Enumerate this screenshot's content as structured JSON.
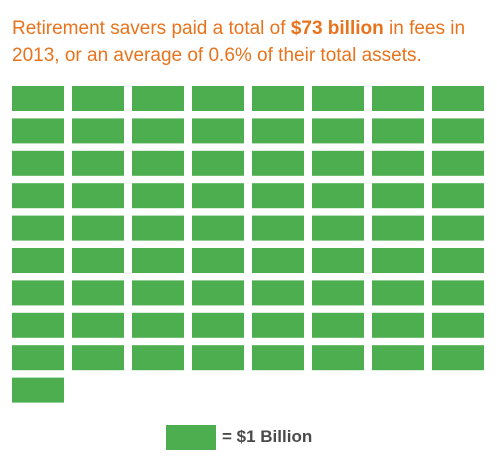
{
  "headline": {
    "part1": "Retirement savers paid a total of ",
    "emphasis": "$73 billion",
    "part2": " in fees in 2013, or an average of 0.6% of their total assets."
  },
  "legend": {
    "label": "= $1 Billion"
  },
  "colors": {
    "accent": "#e8731c",
    "unit": "#4cae4f",
    "legend_text": "#4a4a4a"
  },
  "chart_data": {
    "type": "waffle",
    "title": "Retirement savers paid a total of $73 billion in fees in 2013, or an average of 0.6% of their total assets.",
    "total_units": 73,
    "unit_value": "$1 Billion",
    "total_fees_billion_usd": 73,
    "year": 2013,
    "average_fee_percent_of_assets": 0.6,
    "columns": 8,
    "full_rows": 9,
    "remainder_units": 1
  }
}
